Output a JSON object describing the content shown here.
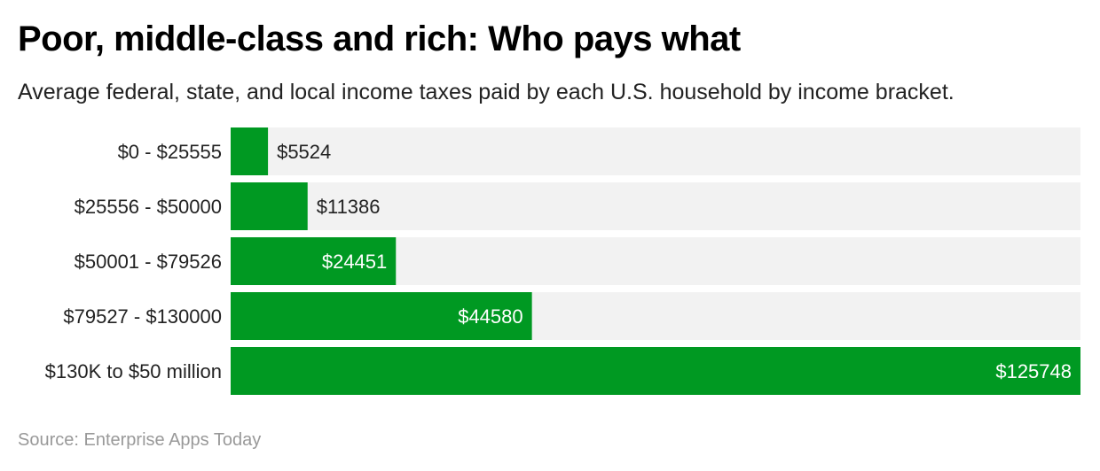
{
  "title": "Poor, middle-class and rich: Who pays what",
  "subtitle": "Average federal, state, and local income taxes paid by each U.S. household by income bracket.",
  "source": "Source: Enterprise Apps Today",
  "colors": {
    "bar": "#009922",
    "track": "#f2f2f2"
  },
  "chart_data": {
    "type": "bar",
    "orientation": "horizontal",
    "categories": [
      "$0 - $25555",
      "$25556 - $50000",
      "$50001 - $79526",
      "$79527 - $130000",
      "$130K to $50 million"
    ],
    "values": [
      5524,
      11386,
      24451,
      44580,
      125748
    ],
    "value_labels": [
      "$5524",
      "$11386",
      "$24451",
      "$44580",
      "$125748"
    ],
    "xlim": [
      0,
      125748
    ],
    "grid": false
  }
}
